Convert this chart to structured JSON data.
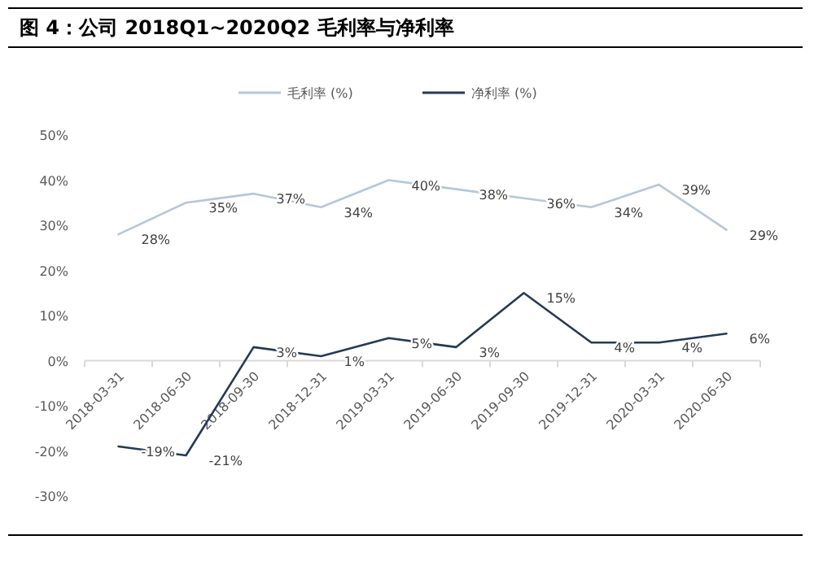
{
  "chart_data": {
    "type": "line",
    "title": "图 4：公司 2018Q1~2020Q2 毛利率与净利率",
    "categories": [
      "2018-03-31",
      "2018-06-30",
      "2018-09-30",
      "2018-12-31",
      "2019-03-31",
      "2019-06-30",
      "2019-09-30",
      "2019-12-31",
      "2020-03-31",
      "2020-06-30"
    ],
    "series": [
      {
        "name": "毛利率 (%)",
        "color": "#b4c7dc",
        "values": [
          28,
          35,
          37,
          34,
          40,
          38,
          36,
          34,
          39,
          29
        ],
        "value_labels": [
          "28%",
          "35%",
          "37%",
          "34%",
          "40%",
          "38%",
          "36%",
          "34%",
          "39%",
          "29%"
        ]
      },
      {
        "name": "净利率 (%)",
        "color": "#243a55",
        "values": [
          -19,
          -21,
          3,
          1,
          5,
          3,
          15,
          4,
          4,
          6
        ],
        "value_labels": [
          "-19%",
          "-21%",
          "3%",
          "1%",
          "5%",
          "3%",
          "15%",
          "4%",
          "4%",
          "6%"
        ]
      }
    ],
    "ylim": [
      -30,
      50
    ],
    "yticks": [
      {
        "value": -30,
        "label": "-30%"
      },
      {
        "value": -20,
        "label": "-20%"
      },
      {
        "value": -10,
        "label": "-10%"
      },
      {
        "value": 0,
        "label": "0%"
      },
      {
        "value": 10,
        "label": "10%"
      },
      {
        "value": 20,
        "label": "20%"
      },
      {
        "value": 30,
        "label": "30%"
      },
      {
        "value": 40,
        "label": "40%"
      },
      {
        "value": 50,
        "label": "50%"
      }
    ],
    "legend": "top",
    "grid": false,
    "marker": "none",
    "line_style": "solid"
  }
}
